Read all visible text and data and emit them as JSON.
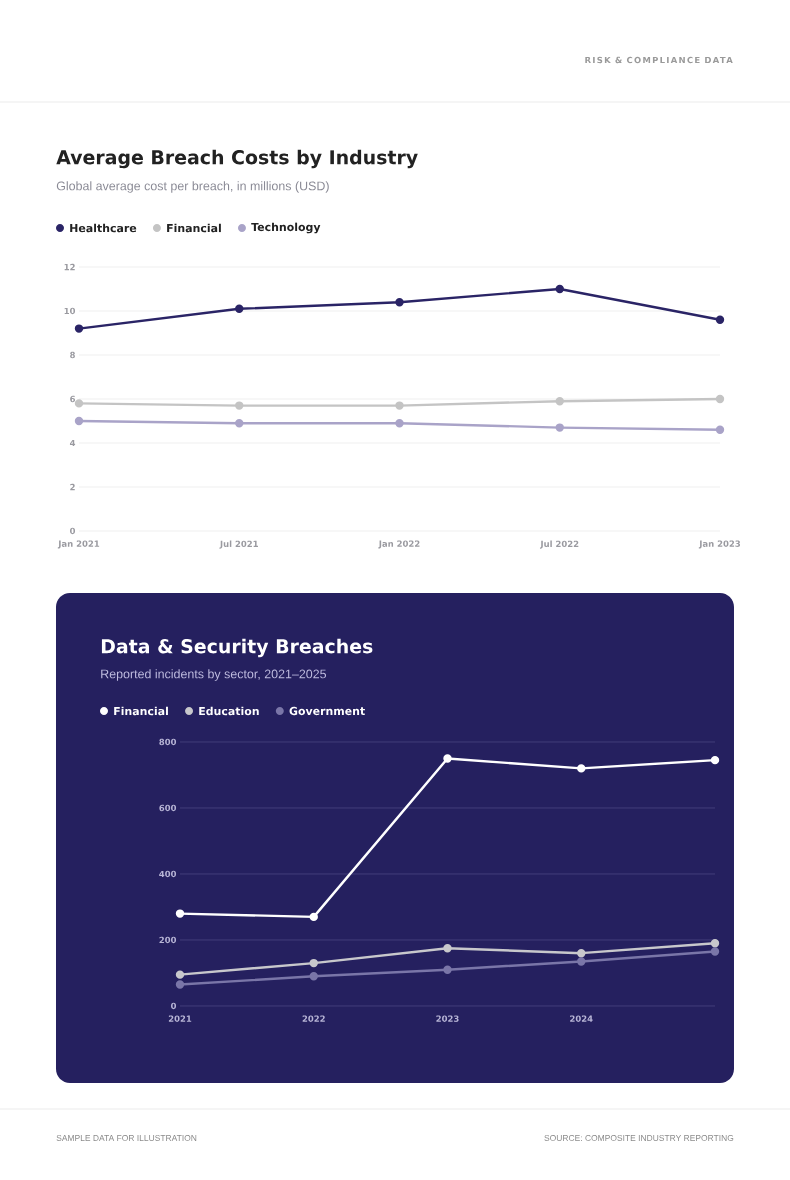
{
  "chart_data": [
    {
      "type": "line",
      "title": "Average Breach Costs by Industry",
      "subtitle": "Global average cost per breach, in millions (USD)",
      "annotations": [
        "RISK & COMPLIANCE DATA"
      ],
      "x": [
        "2021-01",
        "2021-07",
        "2022-01",
        "2022-07",
        "2023-01"
      ],
      "xlim": [
        "2021-01",
        "2023-01"
      ],
      "xticks": [
        {
          "value": "2021-01",
          "label": "Jan 2021"
        },
        {
          "value": "2021-07",
          "label": "Jul 2021"
        },
        {
          "value": "2022-01",
          "label": "Jan 2022"
        },
        {
          "value": "2022-07",
          "label": "Jul 2022"
        },
        {
          "value": "2023-01",
          "label": "Jan 2023"
        }
      ],
      "ylim": [
        0,
        12
      ],
      "yticks": [
        0,
        2,
        4,
        6,
        8,
        10,
        12
      ],
      "grid": "y",
      "legend": "top left",
      "marker": "circle",
      "series": [
        {
          "name": "Healthcare",
          "color": "#2a2466",
          "values": [
            9.2,
            10.1,
            10.4,
            11.0,
            9.6
          ]
        },
        {
          "name": "Financial",
          "color": "#c4c4c4",
          "values": [
            5.8,
            5.7,
            5.7,
            5.9,
            6.0
          ]
        },
        {
          "name": "Technology",
          "color": "#a9a3c8",
          "values": [
            5.0,
            4.9,
            4.9,
            4.7,
            4.6
          ]
        }
      ]
    },
    {
      "type": "line",
      "title": "Data & Security Breaches",
      "subtitle": "Reported incidents by sector, 2021–2025",
      "annotations": [
        "SAMPLE DATA FOR ILLUSTRATION",
        "SOURCE: COMPOSITE INDUSTRY REPORTING"
      ],
      "x": [
        2021,
        2022,
        2023,
        2024,
        2025
      ],
      "xlim": [
        2021,
        2025
      ],
      "xticks": [
        2021,
        2022,
        2023,
        2024
      ],
      "ylim": [
        0,
        800
      ],
      "yticks": [
        0,
        200,
        400,
        600,
        800
      ],
      "grid": "y",
      "legend": "top left",
      "marker": "circle",
      "series": [
        {
          "name": "Financial",
          "color": "#ffffff",
          "values": [
            280,
            270,
            750,
            720,
            745
          ]
        },
        {
          "name": "Education",
          "color": "#c8c8cc",
          "values": [
            95,
            130,
            175,
            160,
            190
          ]
        },
        {
          "name": "Government",
          "color": "#7a76a8",
          "values": [
            65,
            90,
            110,
            135,
            165
          ]
        }
      ]
    }
  ]
}
